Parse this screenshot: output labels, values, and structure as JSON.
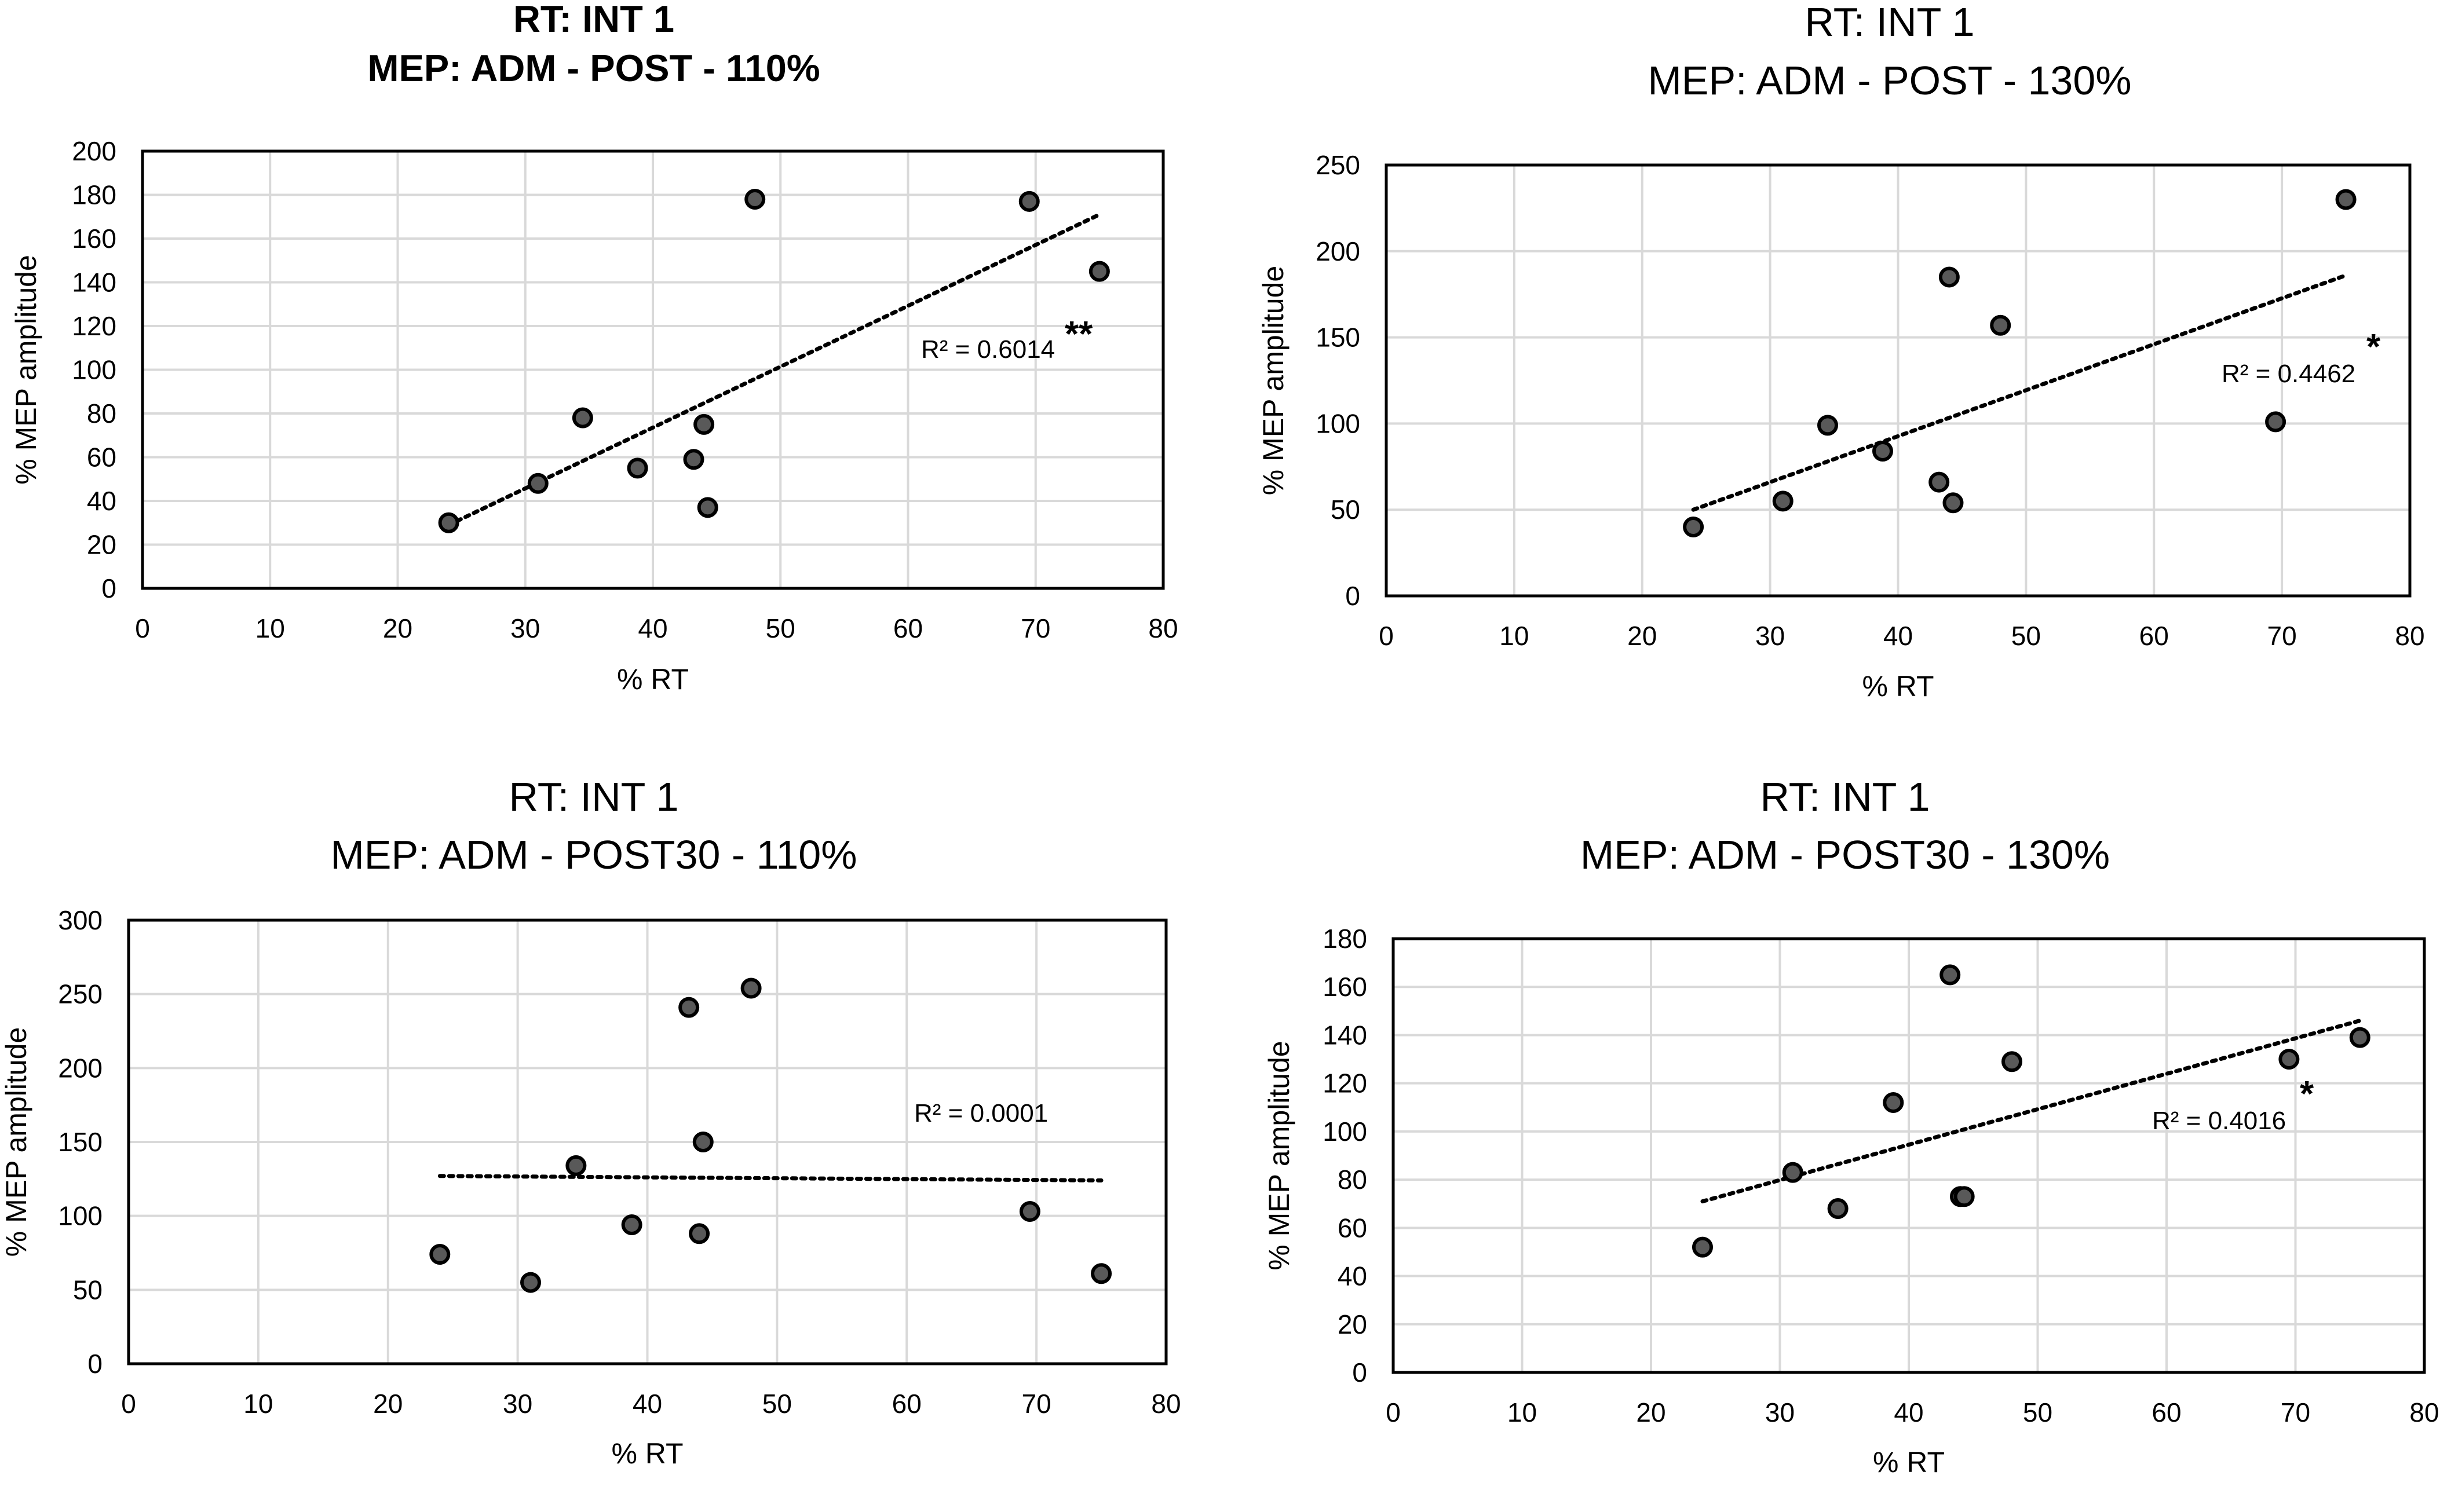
{
  "chart_data": [
    {
      "type": "scatter",
      "title_line1": "RT: INT 1",
      "title_line2": "MEP: ADM - POST - 110%",
      "title_bold": true,
      "xlabel": "% RT",
      "ylabel": "% MEP amplitude",
      "xlim": [
        0,
        80
      ],
      "ylim": [
        0,
        200
      ],
      "x_ticks": [
        0,
        10,
        20,
        30,
        40,
        50,
        60,
        70,
        80
      ],
      "y_ticks": [
        0,
        20,
        40,
        60,
        80,
        100,
        120,
        140,
        160,
        180,
        200
      ],
      "grid": true,
      "points": [
        {
          "x": 24,
          "y": 30
        },
        {
          "x": 31,
          "y": 48
        },
        {
          "x": 34.5,
          "y": 78
        },
        {
          "x": 38.8,
          "y": 55
        },
        {
          "x": 43.2,
          "y": 59
        },
        {
          "x": 44,
          "y": 75
        },
        {
          "x": 44.3,
          "y": 37
        },
        {
          "x": 48,
          "y": 178
        },
        {
          "x": 69.5,
          "y": 177
        },
        {
          "x": 75,
          "y": 145
        }
      ],
      "trendline": {
        "x": [
          24,
          75
        ],
        "y": [
          29,
          171
        ]
      },
      "r2_label": "R² = 0.6014",
      "significance": "**"
    },
    {
      "type": "scatter",
      "title_line1": "RT: INT 1",
      "title_line2": "MEP: ADM - POST - 130%",
      "title_bold": false,
      "xlabel": "% RT",
      "ylabel": "% MEP amplitude",
      "xlim": [
        0,
        80
      ],
      "ylim": [
        0,
        250
      ],
      "x_ticks": [
        0,
        10,
        20,
        30,
        40,
        50,
        60,
        70,
        80
      ],
      "y_ticks": [
        0,
        50,
        100,
        150,
        200,
        250
      ],
      "grid": true,
      "points": [
        {
          "x": 24,
          "y": 40
        },
        {
          "x": 31,
          "y": 55
        },
        {
          "x": 34.5,
          "y": 99
        },
        {
          "x": 38.8,
          "y": 84
        },
        {
          "x": 43.2,
          "y": 66
        },
        {
          "x": 44,
          "y": 185
        },
        {
          "x": 44.3,
          "y": 54
        },
        {
          "x": 48,
          "y": 157
        },
        {
          "x": 69.5,
          "y": 101
        },
        {
          "x": 75,
          "y": 230
        }
      ],
      "trendline": {
        "x": [
          24,
          75
        ],
        "y": [
          50,
          186
        ]
      },
      "r2_label": "R² = 0.4462",
      "significance": "*"
    },
    {
      "type": "scatter",
      "title_line1": "RT: INT 1",
      "title_line2": "MEP: ADM - POST30 - 110%",
      "title_bold": false,
      "xlabel": "% RT",
      "ylabel": "% MEP amplitude",
      "xlim": [
        0,
        80
      ],
      "ylim": [
        0,
        300
      ],
      "x_ticks": [
        0,
        10,
        20,
        30,
        40,
        50,
        60,
        70,
        80
      ],
      "y_ticks": [
        0,
        50,
        100,
        150,
        200,
        250,
        300
      ],
      "grid": true,
      "points": [
        {
          "x": 24,
          "y": 74
        },
        {
          "x": 31,
          "y": 55
        },
        {
          "x": 34.5,
          "y": 134
        },
        {
          "x": 38.8,
          "y": 94
        },
        {
          "x": 43.2,
          "y": 241
        },
        {
          "x": 44,
          "y": 88
        },
        {
          "x": 44.3,
          "y": 150
        },
        {
          "x": 48,
          "y": 254
        },
        {
          "x": 69.5,
          "y": 103
        },
        {
          "x": 75,
          "y": 61
        }
      ],
      "trendline": {
        "x": [
          24,
          75
        ],
        "y": [
          127,
          124
        ]
      },
      "r2_label": "R² = 0.0001",
      "significance": ""
    },
    {
      "type": "scatter",
      "title_line1": "RT: INT 1",
      "title_line2": "MEP: ADM - POST30 - 130%",
      "title_bold": false,
      "xlabel": "% RT",
      "ylabel": "% MEP amplitude",
      "xlim": [
        0,
        80
      ],
      "ylim": [
        0,
        180
      ],
      "x_ticks": [
        0,
        10,
        20,
        30,
        40,
        50,
        60,
        70,
        80
      ],
      "y_ticks": [
        0,
        20,
        40,
        60,
        80,
        100,
        120,
        140,
        160,
        180
      ],
      "grid": true,
      "points": [
        {
          "x": 24,
          "y": 52
        },
        {
          "x": 31,
          "y": 83
        },
        {
          "x": 34.5,
          "y": 68
        },
        {
          "x": 38.8,
          "y": 112
        },
        {
          "x": 43.2,
          "y": 165
        },
        {
          "x": 44,
          "y": 73
        },
        {
          "x": 44.3,
          "y": 73
        },
        {
          "x": 48,
          "y": 129
        },
        {
          "x": 69.5,
          "y": 130
        },
        {
          "x": 75,
          "y": 139
        }
      ],
      "trendline": {
        "x": [
          24,
          75
        ],
        "y": [
          71,
          146
        ]
      },
      "r2_label": "R² = 0.4016",
      "significance": "*"
    }
  ]
}
